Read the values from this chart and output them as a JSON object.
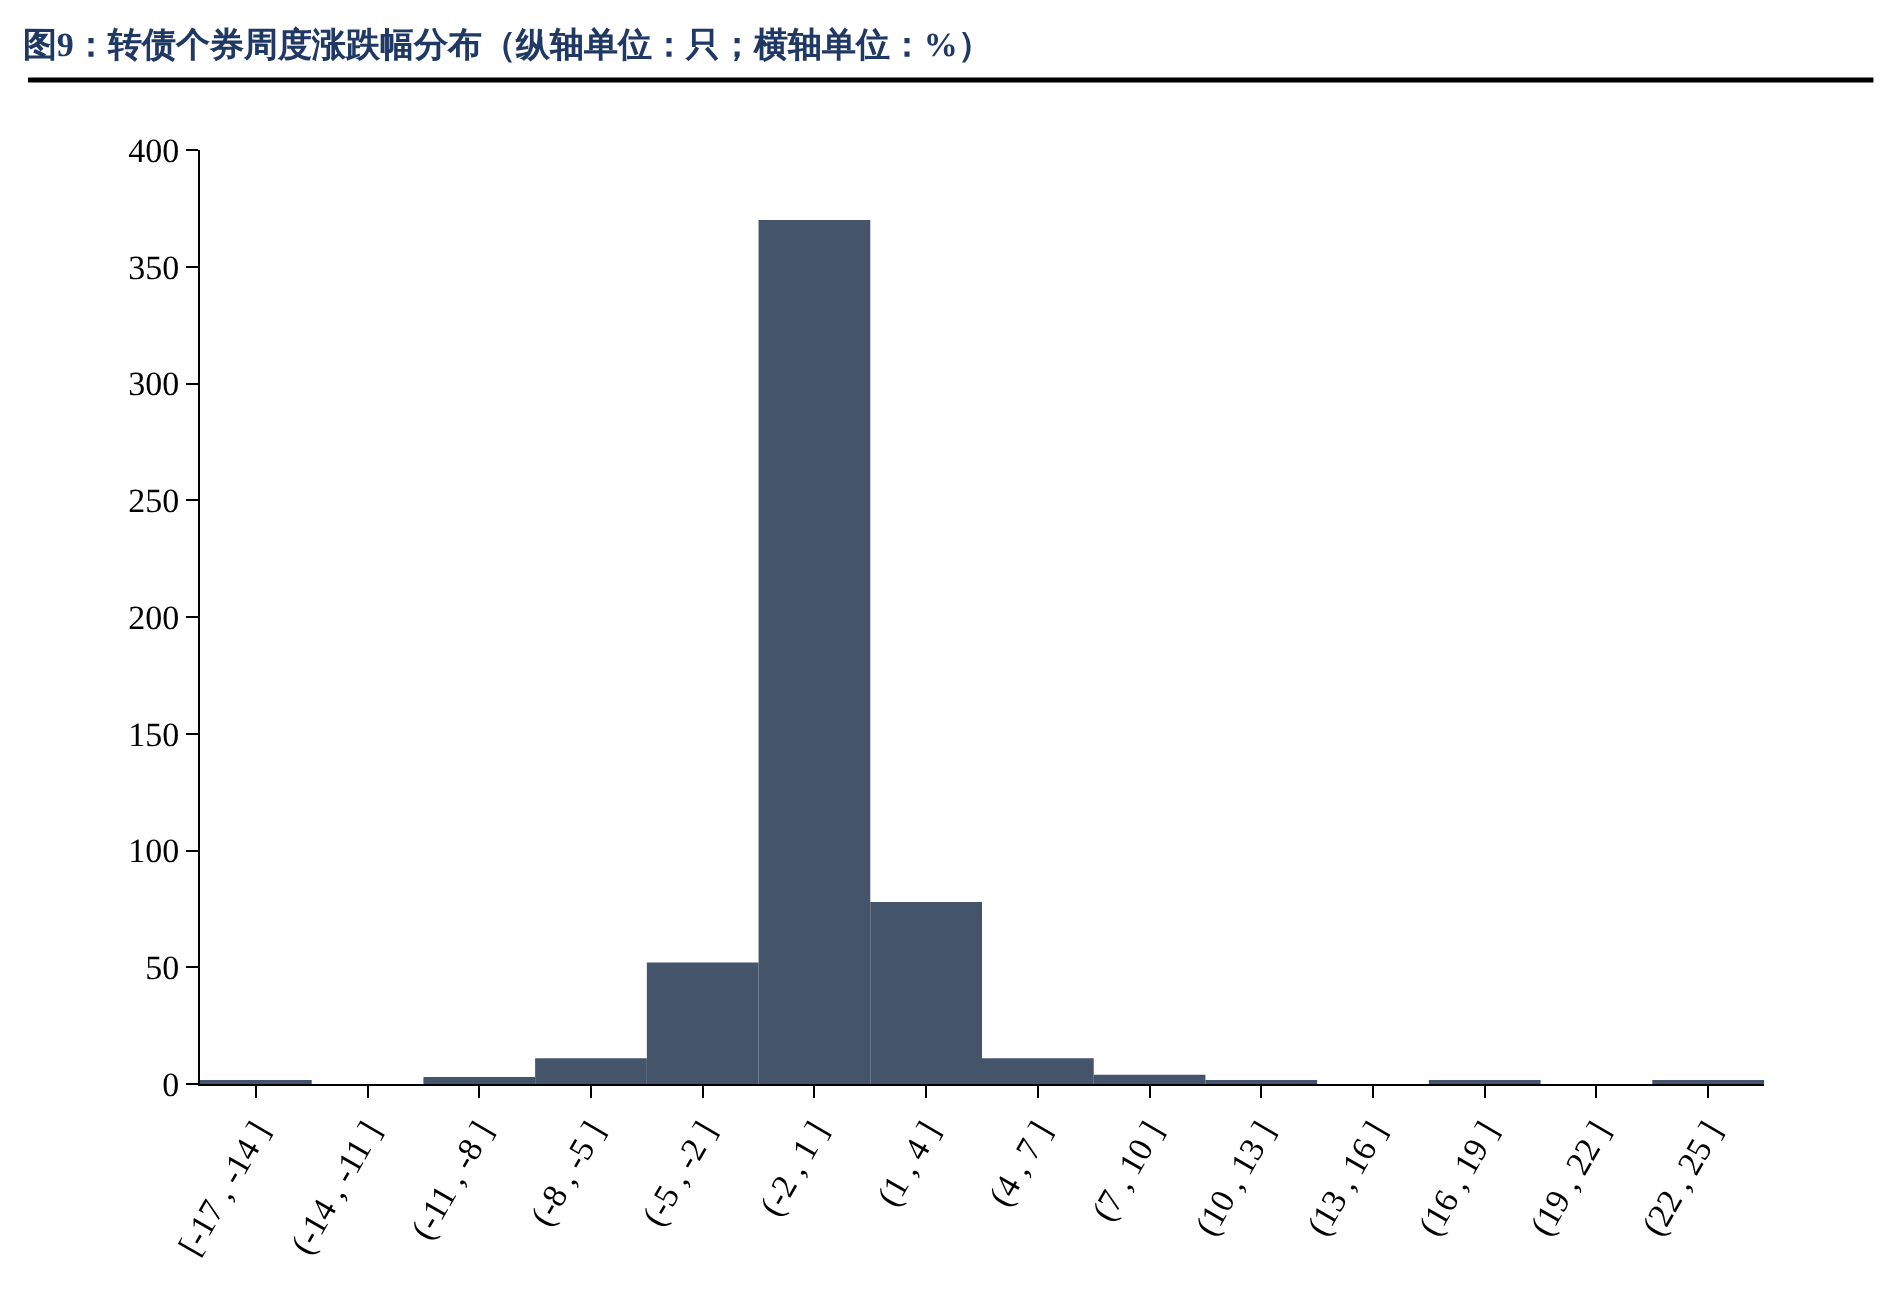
{
  "chart_data": {
    "type": "bar",
    "title": "图9：转债个券周度涨跌幅分布（纵轴单位：只；横轴单位：%）",
    "categories": [
      "[-17 , -14 ]",
      "(-14 , -11 ]",
      "(-11 , -8 ]",
      "(-8 , -5 ]",
      "(-5 , -2 ]",
      "(-2 , 1 ]",
      "(1 , 4 ]",
      "(4 , 7 ]",
      "(7 , 10 ]",
      "(10 , 13 ]",
      "(13 , 16 ]",
      "(16 , 19 ]",
      "(19 , 22 ]",
      "(22 , 25 ]"
    ],
    "values": [
      1,
      0,
      3,
      11,
      52,
      370,
      78,
      11,
      4,
      1,
      0,
      1,
      0,
      1
    ],
    "color": "#44546a",
    "ylim": [
      0,
      400
    ],
    "yticks": [
      0,
      50,
      100,
      150,
      200,
      250,
      300,
      350,
      400
    ]
  }
}
